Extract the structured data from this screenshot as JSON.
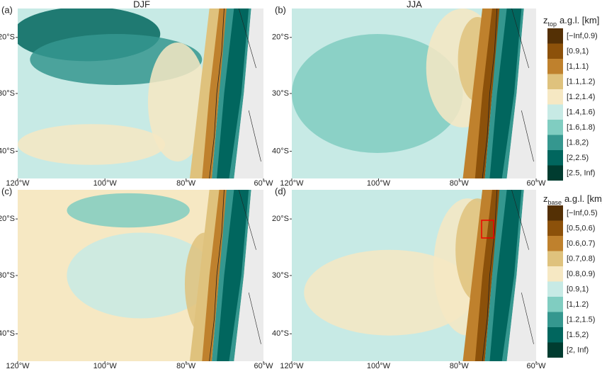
{
  "columns": [
    "DJF",
    "JJA"
  ],
  "panels": [
    {
      "label": "(a)"
    },
    {
      "label": "(b)"
    },
    {
      "label": "(c)"
    },
    {
      "label": "(d)"
    }
  ],
  "axes": {
    "y_ticks": [
      "20°S",
      "30°S",
      "40°S"
    ],
    "x_ticks": [
      "120°W",
      "100°W",
      "80°W",
      "60°W"
    ]
  },
  "legends": [
    {
      "title_symbol": "z",
      "title_sub": "top",
      "title_rest": "a.g.l. [km]",
      "items": [
        {
          "label": "[−Inf,0.9)",
          "color": "#543005"
        },
        {
          "label": "[0.9,1)",
          "color": "#8c510a"
        },
        {
          "label": "[1,1.1)",
          "color": "#bf812d"
        },
        {
          "label": "[1.1,1.2)",
          "color": "#dfc27d"
        },
        {
          "label": "[1.2,1.4)",
          "color": "#f6e8c3"
        },
        {
          "label": "[1.4,1.6)",
          "color": "#c7eae5"
        },
        {
          "label": "[1.6,1.8)",
          "color": "#80cdc1"
        },
        {
          "label": "[1.8,2)",
          "color": "#35978f"
        },
        {
          "label": "[2,2.5)",
          "color": "#01665e"
        },
        {
          "label": "[2.5, Inf)",
          "color": "#003c30"
        }
      ]
    },
    {
      "title_symbol": "z",
      "title_sub": "base",
      "title_rest": "a.g.l. [km]",
      "items": [
        {
          "label": "[−Inf,0.5)",
          "color": "#543005"
        },
        {
          "label": "[0.5,0.6)",
          "color": "#8c510a"
        },
        {
          "label": "[0.6,0.7)",
          "color": "#bf812d"
        },
        {
          "label": "[0.7,0.8)",
          "color": "#dfc27d"
        },
        {
          "label": "[0.8,0.9)",
          "color": "#f6e8c3"
        },
        {
          "label": "[0.9,1)",
          "color": "#c7eae5"
        },
        {
          "label": "[1,1.2)",
          "color": "#80cdc1"
        },
        {
          "label": "[1.2,1.5)",
          "color": "#35978f"
        },
        {
          "label": "[1.5,2)",
          "color": "#01665e"
        },
        {
          "label": "[2, Inf)",
          "color": "#003c30"
        }
      ]
    }
  ]
}
